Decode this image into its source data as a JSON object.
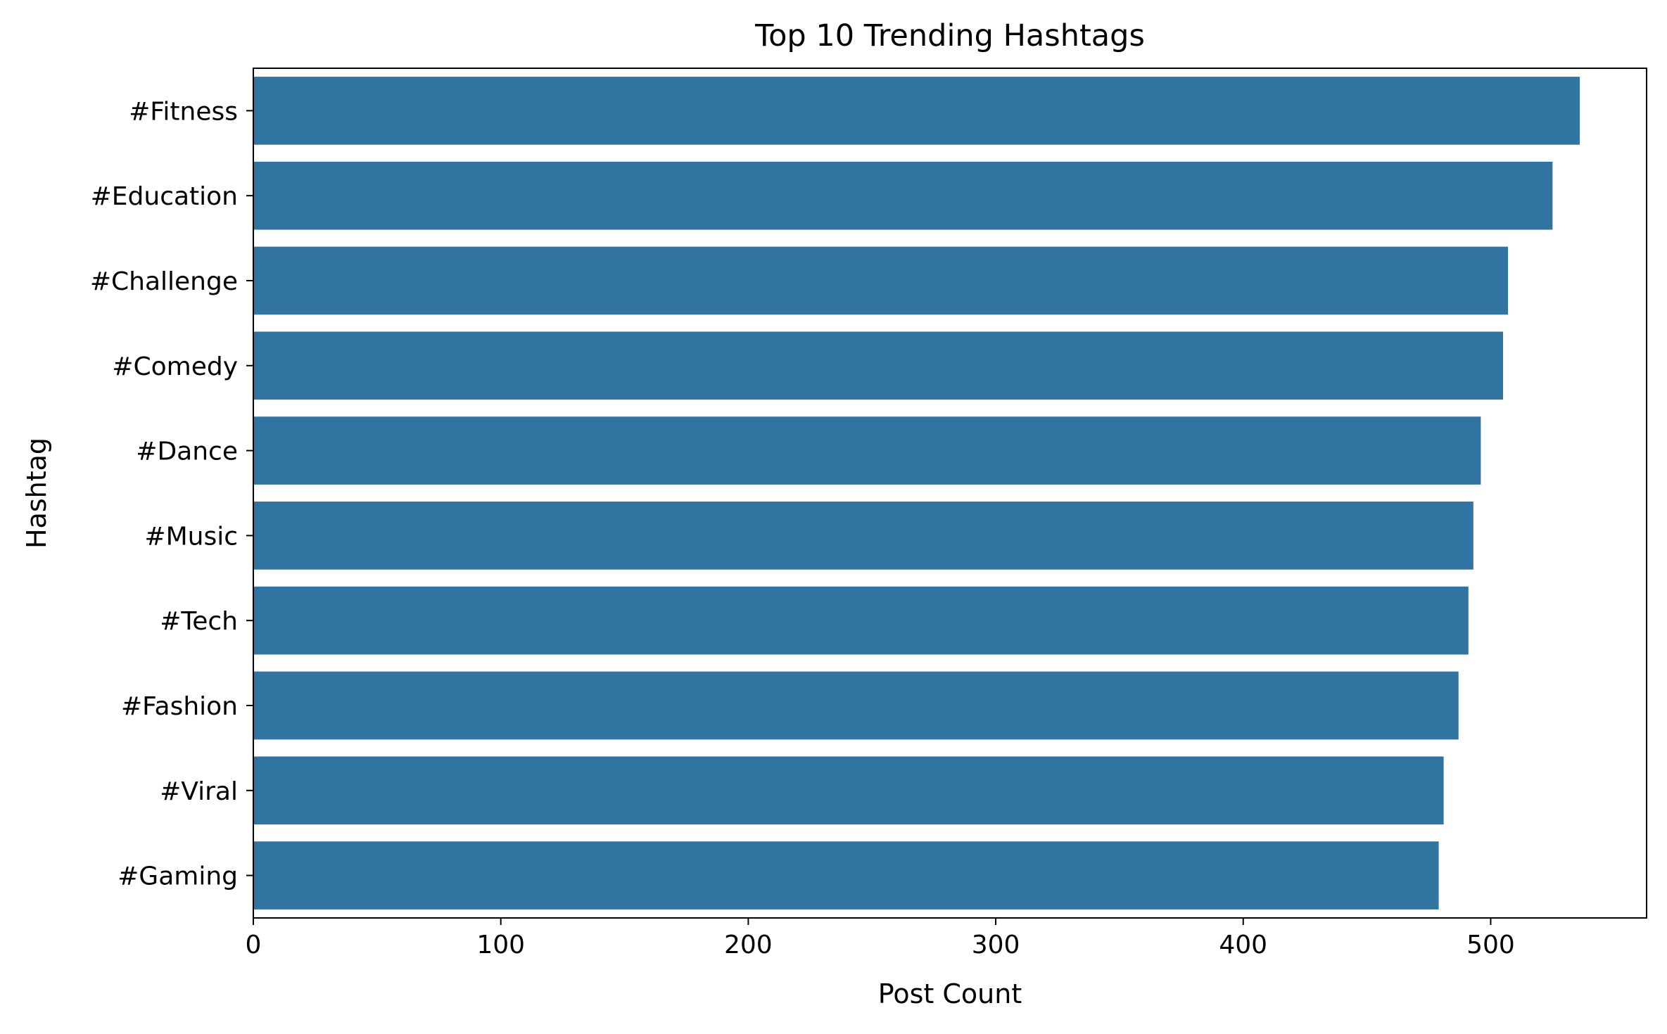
{
  "chart_data": {
    "type": "bar",
    "orientation": "horizontal",
    "title": "Top 10 Trending Hashtags",
    "xlabel": "Post Count",
    "ylabel": "Hashtag",
    "categories": [
      "#Fitness",
      "#Education",
      "#Challenge",
      "#Comedy",
      "#Dance",
      "#Music",
      "#Tech",
      "#Fashion",
      "#Viral",
      "#Gaming"
    ],
    "values": [
      536,
      525,
      507,
      505,
      496,
      493,
      491,
      487,
      481,
      479
    ],
    "xlim": [
      0,
      563
    ],
    "xticks": [
      0,
      100,
      200,
      300,
      400,
      500
    ],
    "grid": false,
    "legend": "none",
    "bar_color": "#3274a1"
  }
}
